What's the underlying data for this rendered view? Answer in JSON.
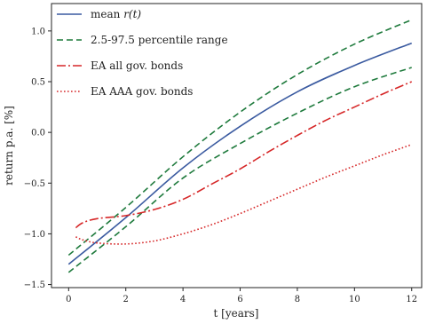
{
  "chart_data": {
    "type": "line",
    "title": "",
    "xlabel": "t  [years]",
    "ylabel": "return p.a.  [%]",
    "xlim": [
      -0.6,
      12.35
    ],
    "ylim": [
      -1.53,
      1.27
    ],
    "xticks": [
      0,
      2,
      4,
      6,
      8,
      10,
      12
    ],
    "yticks": [
      -1.5,
      -1.0,
      -0.5,
      0.0,
      0.5,
      1.0
    ],
    "xtick_labels": [
      "0",
      "2",
      "4",
      "6",
      "8",
      "10",
      "12"
    ],
    "ytick_labels": [
      "−1.5",
      "−1.0",
      "−0.5",
      "0.0",
      "0.5",
      "1.0"
    ],
    "grid": false,
    "legend_position": "top-left",
    "series": [
      {
        "name": "mean r(t)",
        "legend_label": "mean ",
        "legend_math": "r(t)",
        "color": "#3a5aa0",
        "style": "solid",
        "x": [
          0,
          2,
          4,
          6,
          8,
          10,
          12
        ],
        "y": [
          -1.3,
          -0.84,
          -0.35,
          0.06,
          0.4,
          0.66,
          0.88
        ]
      },
      {
        "name": "2.5-97.5 percentile range",
        "legend_label": "2.5-97.5 percentile range",
        "color": "#1e7a3c",
        "style": "dashed",
        "x": [
          0,
          2,
          4,
          6,
          8,
          10,
          12
        ],
        "y": [
          -1.21,
          -0.74,
          -0.24,
          0.2,
          0.57,
          0.87,
          1.11
        ]
      },
      {
        "name": "2.5-97.5 percentile range (lower)",
        "legend_label": "",
        "color": "#1e7a3c",
        "style": "dashed",
        "x": [
          0,
          2,
          4,
          6,
          8,
          10,
          12
        ],
        "y": [
          -1.38,
          -0.93,
          -0.45,
          -0.11,
          0.19,
          0.45,
          0.64
        ]
      },
      {
        "name": "EA all gov. bonds",
        "legend_label": "EA all gov. bonds",
        "color": "#d62728",
        "style": "dashdot",
        "x": [
          0.25,
          0.5,
          1,
          2,
          3,
          4,
          5,
          6,
          7,
          8,
          9,
          10,
          11,
          12
        ],
        "y": [
          -0.94,
          -0.89,
          -0.85,
          -0.82,
          -0.76,
          -0.66,
          -0.51,
          -0.36,
          -0.19,
          -0.03,
          0.12,
          0.25,
          0.38,
          0.5
        ]
      },
      {
        "name": "EA AAA gov. bonds",
        "legend_label": "EA AAA gov. bonds",
        "color": "#d62728",
        "style": "dotted",
        "x": [
          0.25,
          0.5,
          1,
          2,
          3,
          4,
          5,
          6,
          7,
          8,
          9,
          10,
          11,
          12
        ],
        "y": [
          -1.03,
          -1.06,
          -1.09,
          -1.1,
          -1.07,
          -1.0,
          -0.91,
          -0.8,
          -0.68,
          -0.56,
          -0.44,
          -0.33,
          -0.22,
          -0.12
        ]
      }
    ]
  }
}
